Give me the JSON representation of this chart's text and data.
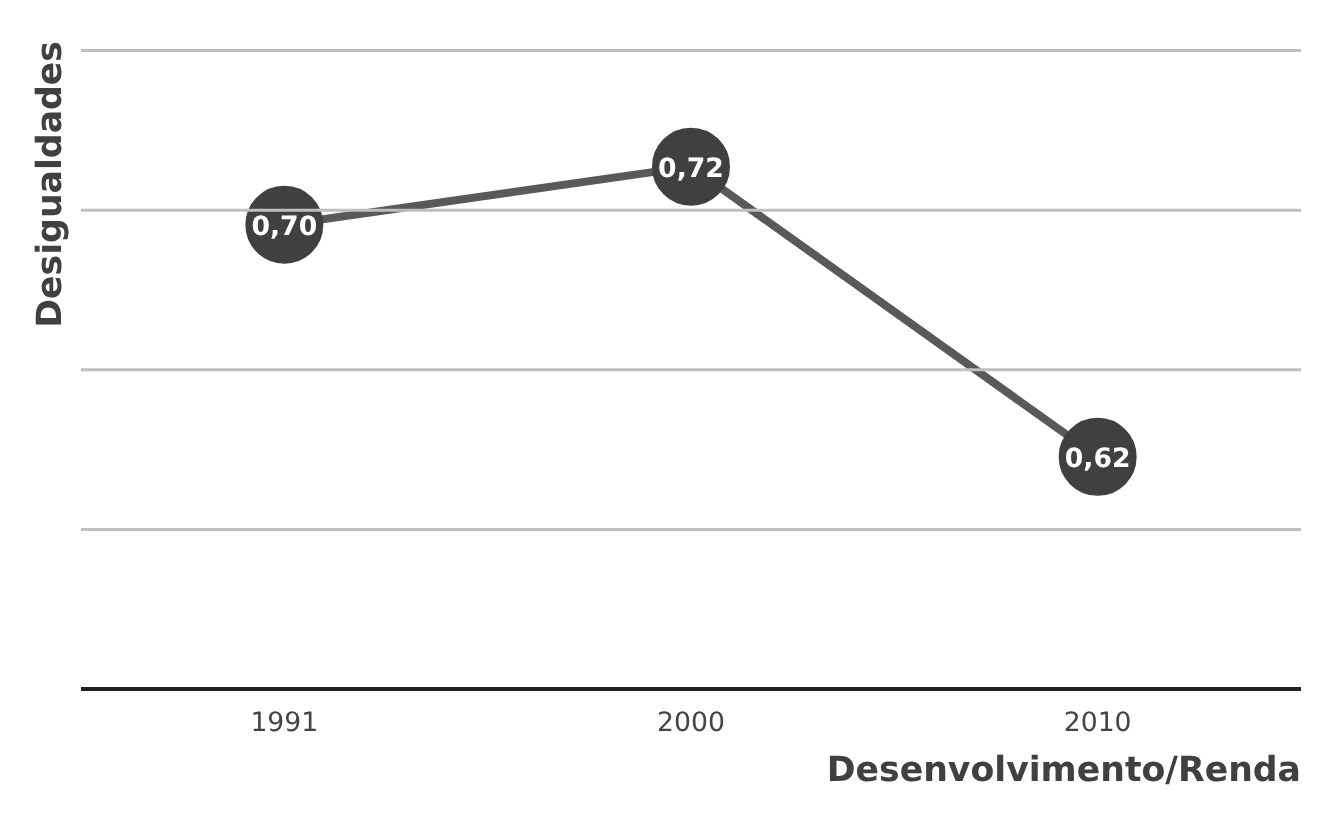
{
  "chart_data": {
    "type": "line",
    "xlabel": "Desenvolvimento/Renda",
    "ylabel": "Desigualdades",
    "categories": [
      "1991",
      "2000",
      "2010"
    ],
    "series": [
      {
        "color": "#595959",
        "values": [
          0.7,
          0.72,
          0.62
        ],
        "value_labels": [
          "0,70",
          "0,72",
          "0,62"
        ]
      }
    ],
    "ref_lines": [
      {
        "axis": "y",
        "value": 0.595,
        "color": "#bfbfbf"
      },
      {
        "axis": "y",
        "value": 0.65,
        "color": "#bfbfbf"
      },
      {
        "axis": "y",
        "value": 0.705,
        "color": "#bfbfbf"
      },
      {
        "axis": "y",
        "value": 0.76,
        "color": "#bfbfbf"
      }
    ],
    "marker": "circle",
    "line_style": "solid"
  }
}
